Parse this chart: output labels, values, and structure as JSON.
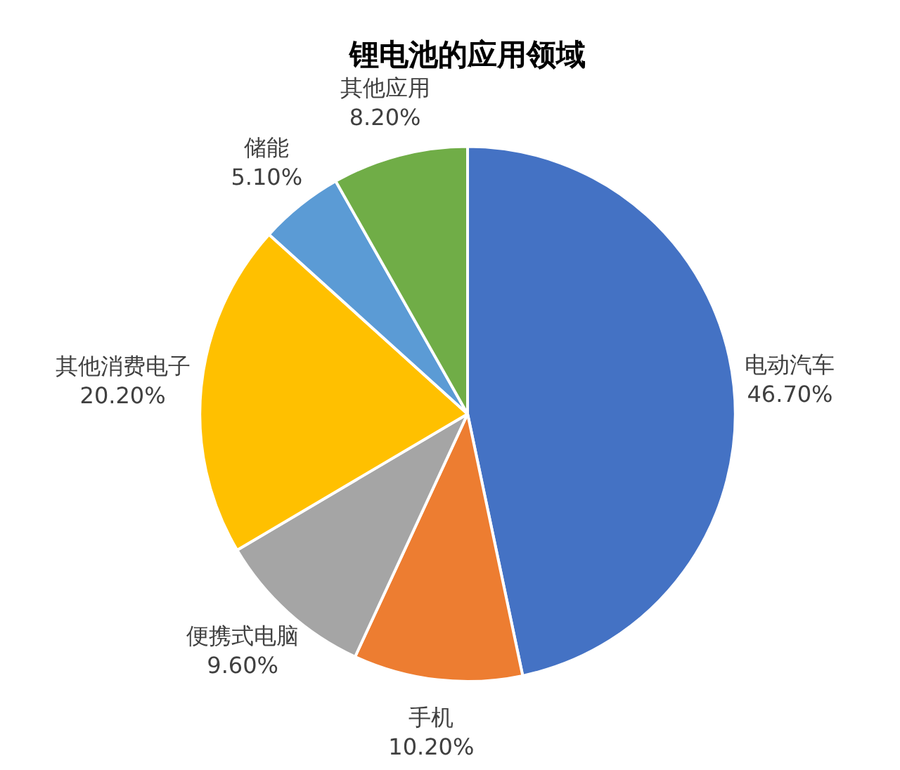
{
  "chart_data": {
    "type": "pie",
    "title": "锂电池的应用领域",
    "categories": [
      "电动汽车",
      "手机",
      "便携式电脑",
      "其他消费电子",
      "储能",
      "其他应用"
    ],
    "values": [
      46.7,
      10.2,
      9.6,
      20.2,
      5.1,
      8.2
    ],
    "value_labels": [
      "46.70%",
      "10.20%",
      "9.60%",
      "20.20%",
      "5.10%",
      "8.20%"
    ],
    "colors": [
      "#4472c4",
      "#ed7d31",
      "#a5a5a5",
      "#ffc000",
      "#5b9bd5",
      "#70ad47"
    ],
    "legend": false
  }
}
